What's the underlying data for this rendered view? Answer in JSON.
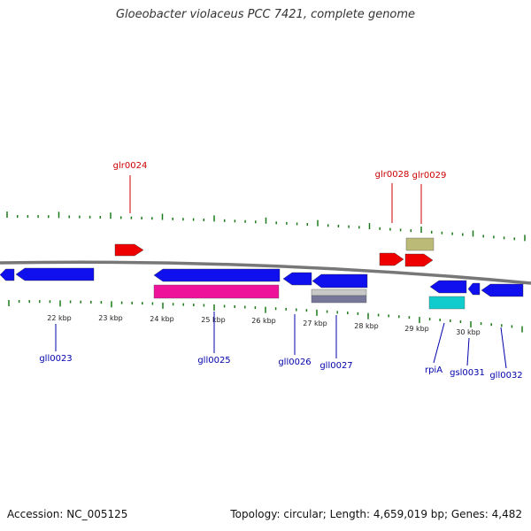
{
  "title": "Gloeobacter violaceus PCC 7421, complete genome",
  "footer": {
    "accession": "Accession: NC_005125",
    "stats": "Topology: circular; Length: 4,659,019 bp; Genes: 4,482"
  },
  "colors": {
    "backbone": "#777777",
    "tick": "#1a7a1a",
    "forward_label": "#cc0000",
    "reverse_label": "#0000aa",
    "cds_forward": "#ee0000",
    "cds_reverse": "#1010ee",
    "rna": "#ee1199",
    "other_feature": "#bbbb77",
    "trna": "#11cccc",
    "misc": "#777799"
  },
  "scale": {
    "unit": "kbp",
    "labels": [
      "22 kbp",
      "23 kbp",
      "24 kbp",
      "25 kbp",
      "26 kbp",
      "27 kbp",
      "28 kbp",
      "29 kbp",
      "30 kbp"
    ]
  },
  "forward_genes": [
    {
      "label": "glr0024"
    },
    {
      "label": "glr0028"
    },
    {
      "label": "glr0029"
    }
  ],
  "reverse_genes": [
    {
      "label": "gll0023"
    },
    {
      "label": "gll0025"
    },
    {
      "label": "gll0026"
    },
    {
      "label": "gll0027"
    },
    {
      "label": "rpiA"
    },
    {
      "label": "gsl0031"
    },
    {
      "label": "gll0032"
    }
  ]
}
